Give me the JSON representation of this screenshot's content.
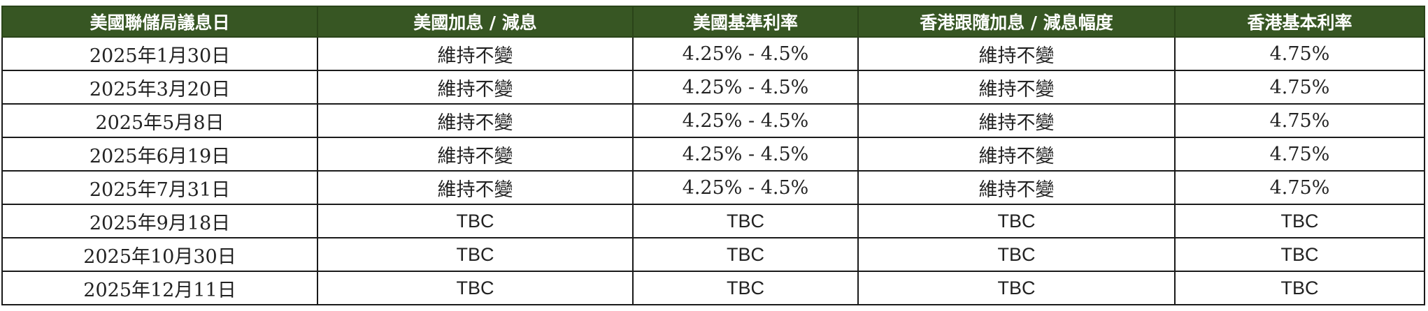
{
  "table": {
    "header_bg": "#375623",
    "columns": [
      "美國聯儲局議息日",
      "美國加息 / 減息",
      "美國基準利率",
      "香港跟隨加息 / 減息幅度",
      "香港基本利率"
    ],
    "rows": [
      [
        "2025年1月30日",
        "維持不變",
        "4.25% - 4.5%",
        "維持不變",
        "4.75%"
      ],
      [
        "2025年3月20日",
        "維持不變",
        "4.25% - 4.5%",
        "維持不變",
        "4.75%"
      ],
      [
        "2025年5月8日",
        "維持不變",
        "4.25% - 4.5%",
        "維持不變",
        "4.75%"
      ],
      [
        "2025年6月19日",
        "維持不變",
        "4.25% - 4.5%",
        "維持不變",
        "4.75%"
      ],
      [
        "2025年7月31日",
        "維持不變",
        "4.25% - 4.5%",
        "維持不變",
        "4.75%"
      ],
      [
        "2025年9月18日",
        "TBC",
        "TBC",
        "TBC",
        "TBC"
      ],
      [
        "2025年10月30日",
        "TBC",
        "TBC",
        "TBC",
        "TBC"
      ],
      [
        "2025年12月11日",
        "TBC",
        "TBC",
        "TBC",
        "TBC"
      ]
    ]
  }
}
